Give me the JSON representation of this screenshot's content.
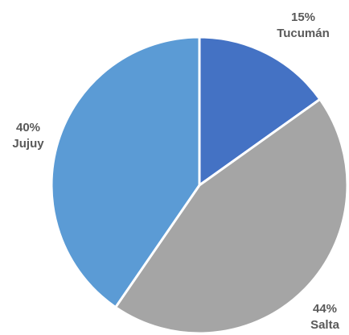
{
  "chart_data": {
    "type": "pie",
    "title": "",
    "slices": [
      {
        "label": "Tucumán",
        "value": 15,
        "value_label": "15%",
        "color": "#4472c4"
      },
      {
        "label": "Salta",
        "value": 44,
        "value_label": "44%",
        "color": "#a5a5a5"
      },
      {
        "label": "Jujuy",
        "value": 40,
        "value_label": "40%",
        "color": "#5b9bd5"
      }
    ],
    "start": "12 o'clock",
    "direction": "clockwise",
    "legend": "none",
    "data_labels": "outside, percent above category"
  }
}
